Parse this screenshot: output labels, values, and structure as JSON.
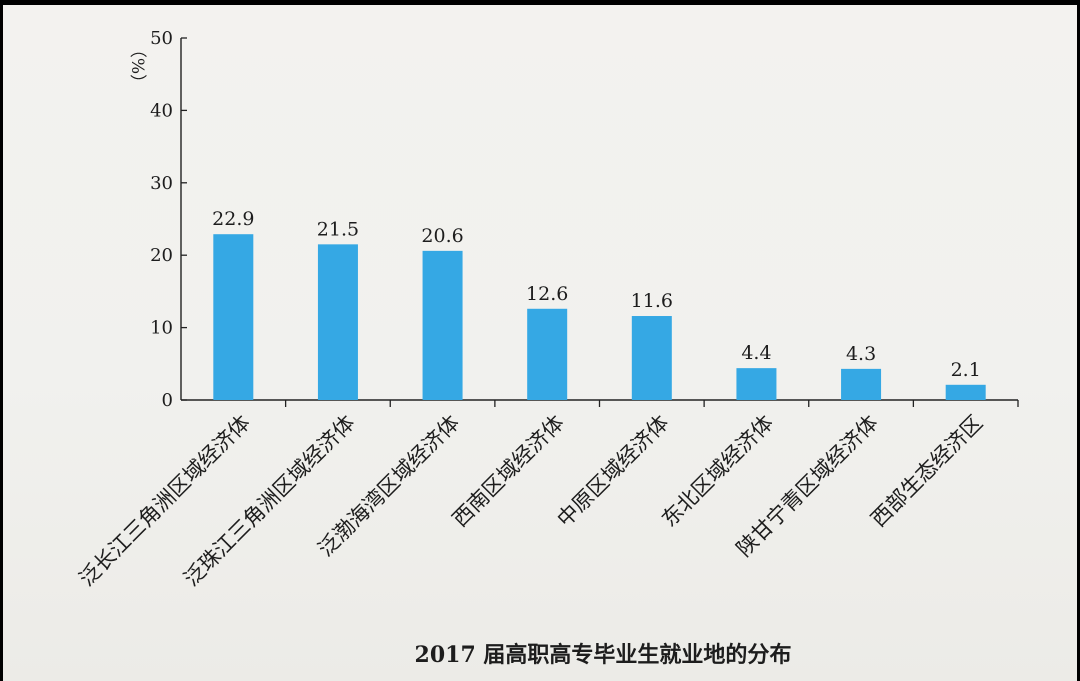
{
  "chart_data": {
    "type": "bar",
    "title": "2017 届高职高专毕业生就业地的分布",
    "ylabel": "（%）",
    "xlabel": "",
    "ylim": [
      0,
      50
    ],
    "yticks": [
      0,
      10,
      20,
      30,
      40,
      50
    ],
    "grid": false,
    "legend": "none",
    "categories": [
      "泛长江三角洲区域经济体",
      "泛珠江三角洲区域经济体",
      "泛渤海湾区域经济体",
      "西南区域经济体",
      "中原区域经济体",
      "东北区域经济体",
      "陕甘宁青区域经济体",
      "西部生态经济区"
    ],
    "values": [
      22.9,
      21.5,
      20.6,
      12.6,
      11.6,
      4.4,
      4.3,
      2.1
    ],
    "data_labels": [
      "22.9",
      "21.5",
      "20.6",
      "12.6",
      "11.6",
      "4.4",
      "4.3",
      "2.1"
    ],
    "colors": {
      "bar": "#35a8e4",
      "axis": "#222222",
      "background": "#f2f1ee"
    }
  }
}
